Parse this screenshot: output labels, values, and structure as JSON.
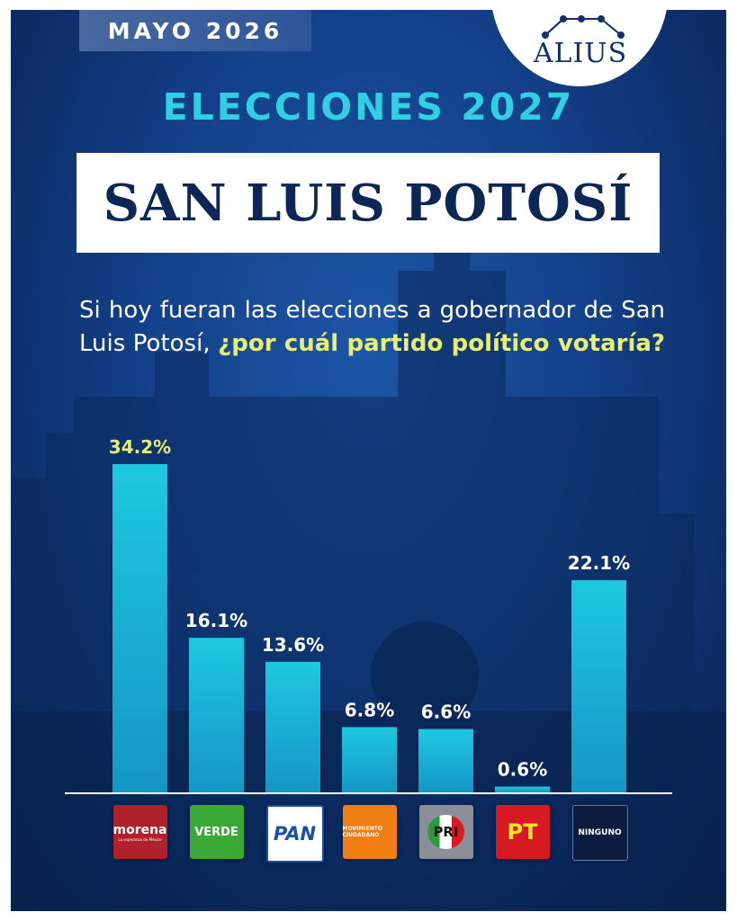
{
  "header": {
    "date": "MAYO 2026",
    "brand": "ALIUS"
  },
  "kicker": "ELECCIONES 2027",
  "title": "SAN LUIS POTOSÍ",
  "question": {
    "text": "Si hoy fueran las elecciones a gobernador de San Luis Potosí,",
    "highlight": "¿por cuál partido político votaría?"
  },
  "colors": {
    "background": "#134089",
    "bar": "#1ec8e0",
    "kicker": "#2fd0e3",
    "highlight": "#e8ed74",
    "title": "#0c2756"
  },
  "chart_data": {
    "type": "bar",
    "categories": [
      "morena",
      "VERDE",
      "PAN",
      "MOVIMIENTO CIUDADANO",
      "PRI",
      "PT",
      "NINGUNO"
    ],
    "values": [
      34.2,
      16.1,
      13.6,
      6.8,
      6.6,
      0.6,
      22.1
    ],
    "labels": [
      "34.2%",
      "16.1%",
      "13.6%",
      "6.8%",
      "6.6%",
      "0.6%",
      "22.1%"
    ],
    "unit": "%",
    "ylim": [
      0,
      34.2
    ],
    "grid": false,
    "legend": "none"
  },
  "party_logos": [
    {
      "icon": "morena-logo",
      "text": "morena",
      "subtext": "La esperanza de México",
      "color": "#b0212b"
    },
    {
      "icon": "verde-logo",
      "text": "VERDE",
      "color": "#3aa935"
    },
    {
      "icon": "pan-logo",
      "text": "PAN",
      "color": "#ffffff"
    },
    {
      "icon": "movimiento-ciudadano-logo",
      "text": "MOVIMIENTO CIUDADANO",
      "color": "#f07e15"
    },
    {
      "icon": "pri-logo",
      "text": "PRI",
      "color": "#8b9098"
    },
    {
      "icon": "pt-logo",
      "text": "PT",
      "color": "#d71a21"
    },
    {
      "icon": "ninguno-logo",
      "text": "NINGUNO",
      "color": "#0b1c3f"
    }
  ]
}
